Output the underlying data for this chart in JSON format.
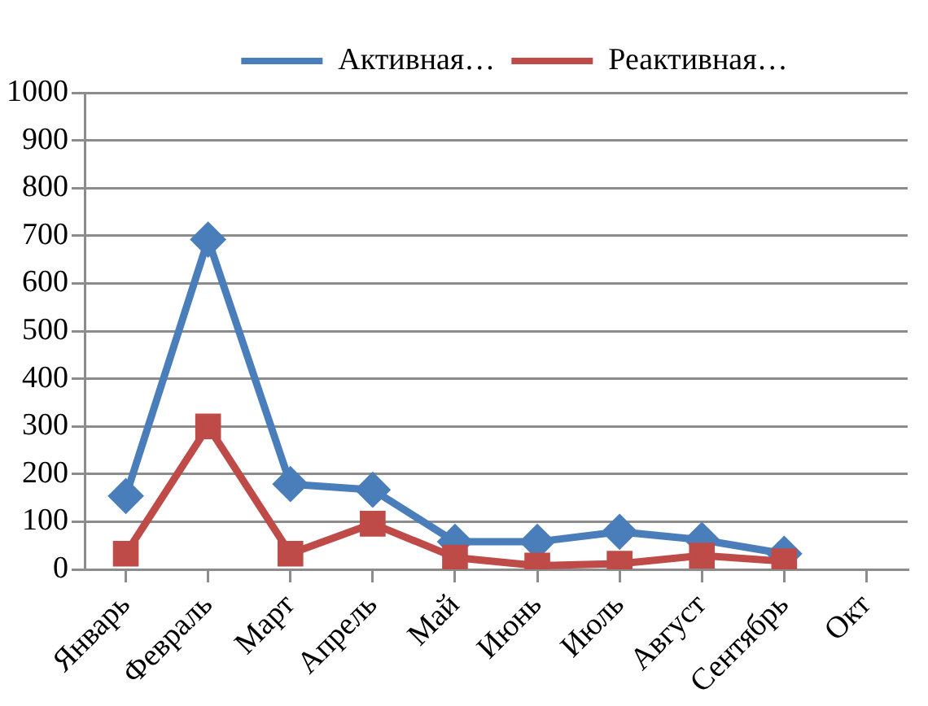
{
  "chart_data": {
    "type": "line",
    "categories": [
      "Январь",
      "Февраль",
      "Март",
      "Апрель",
      "Май",
      "Июнь",
      "Июль",
      "Август",
      "Сентябрь",
      "Окт"
    ],
    "series": [
      {
        "name": "Активная…",
        "color": "#4a7ebb",
        "marker": "diamond",
        "values": [
          154,
          692,
          179,
          167,
          58,
          58,
          79,
          62,
          33,
          null
        ]
      },
      {
        "name": "Реактивная…",
        "color": "#be4b48",
        "marker": "square",
        "values": [
          33,
          300,
          33,
          96,
          25,
          8,
          12,
          29,
          17,
          null
        ]
      }
    ],
    "ylim": [
      0,
      1000
    ],
    "yticks": [
      0,
      100,
      200,
      300,
      400,
      500,
      600,
      700,
      800,
      900,
      1000
    ],
    "grid": "y",
    "legend": "top",
    "line_style": "solid"
  }
}
